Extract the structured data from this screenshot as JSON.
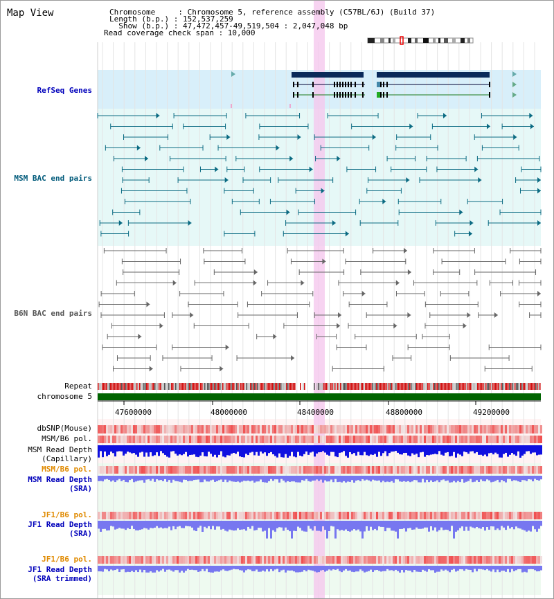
{
  "view_title": "Map View",
  "info": {
    "chromosome": "Chromosome     : Chromosome 5, reference assembly (C57BL/6J) (Build 37)",
    "length": "Length (b.p.) : 152,537,259",
    "show": "  Show (b.p.) : 47,472,457-49,519,504 : 2,047,048 bp",
    "coverage": "Read coverage check span : 10,000"
  },
  "tracks": {
    "refseq": "RefSeq Genes",
    "msm_bac": "MSM BAC end pairs",
    "b6n_bac": "B6N BAC end pairs",
    "repeat": "Repeat",
    "chromosome": "chromosome 5",
    "dbsnp": "dbSNP(Mouse)",
    "msm_b6_pol_1": "MSM/B6 pol.",
    "msm_depth_cap_1": "MSM Read Depth",
    "msm_depth_cap_2": "(Capillary)",
    "msm_b6_pol_2": "MSM/B6 pol.",
    "msm_depth_sra_1": "MSM Read Depth",
    "msm_depth_sra_2": "(SRA)",
    "jf1_pol_1": "JF1/B6 pol.",
    "jf1_depth_sra_1": "JF1 Read Depth",
    "jf1_depth_sra_2": "(SRA)",
    "jf1_pol_2": "JF1/B6 pol.",
    "jf1_depth_trim_1": "JF1 Read Depth",
    "jf1_depth_trim_2": "(SRA trimmed)"
  },
  "axis_ticks": [
    "47600000",
    "48000000",
    "48400000",
    "48800000",
    "49200000"
  ],
  "colors": {
    "refseq_label": "#0000bb",
    "msm_bac_label": "#005a7a",
    "b6n_bac_label": "#555555",
    "polymorphism_label": "#e08a00",
    "read_depth_label": "#0000bb",
    "refseq_bg": "#d8effa",
    "msm_bg": "#e6f8f7",
    "b6n_bg": "#ffffff",
    "highlight": "#f5c8ee",
    "gene_dark": "#0a2a5a",
    "gene_green": "#1a7a1a",
    "depth_blue": "#1010e0",
    "depth_light_blue": "#7777f0",
    "chromosome_green": "#006400"
  }
}
